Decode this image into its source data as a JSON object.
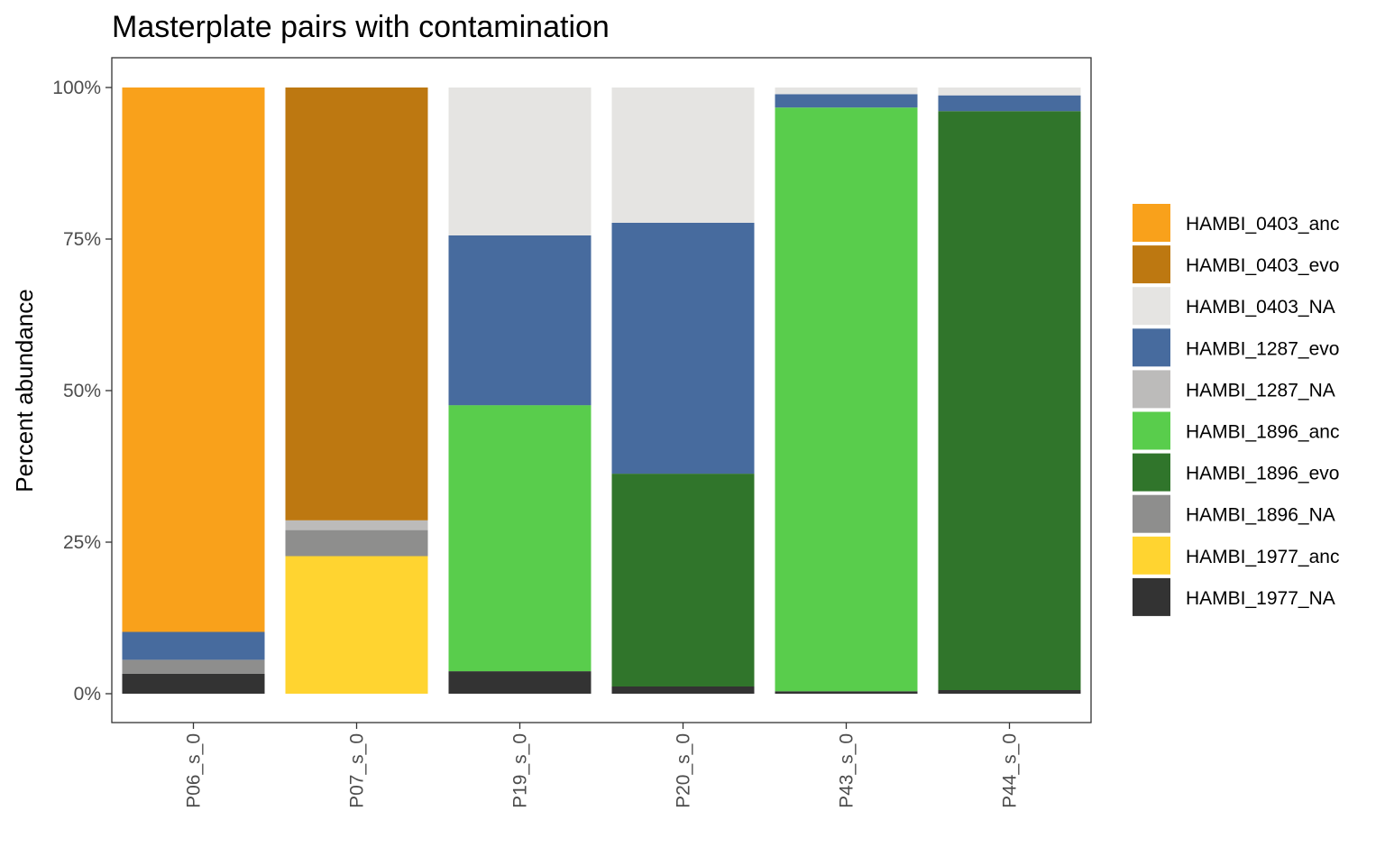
{
  "chart_data": {
    "type": "bar",
    "stacked": true,
    "title": "Masterplate pairs with contamination",
    "xlabel": "",
    "ylabel": "Percent abundance",
    "ylim": [
      0,
      100
    ],
    "yticks": [
      {
        "value": 0,
        "label": "0%"
      },
      {
        "value": 25,
        "label": "25%"
      },
      {
        "value": 50,
        "label": "50%"
      },
      {
        "value": 75,
        "label": "75%"
      },
      {
        "value": 100,
        "label": "100%"
      }
    ],
    "grid": false,
    "legend_position": "right",
    "categories": [
      "P06_s_0",
      "P07_s_0",
      "P19_s_0",
      "P20_s_0",
      "P43_s_0",
      "P44_s_0"
    ],
    "series": [
      {
        "name": "HAMBI_0403_anc",
        "color": "#f9a11b",
        "values": [
          89.8,
          0,
          0,
          0,
          0,
          0
        ]
      },
      {
        "name": "HAMBI_0403_evo",
        "color": "#bd7811",
        "values": [
          0,
          71.4,
          0,
          0,
          0,
          0
        ]
      },
      {
        "name": "HAMBI_0403_NA",
        "color": "#e5e4e2",
        "values": [
          0,
          0,
          24.4,
          22.3,
          1.1,
          1.3
        ]
      },
      {
        "name": "HAMBI_1287_evo",
        "color": "#476b9e",
        "values": [
          4.6,
          0,
          28.0,
          41.4,
          2.2,
          2.6
        ]
      },
      {
        "name": "HAMBI_1287_NA",
        "color": "#bcbbba",
        "values": [
          0,
          1.6,
          0,
          0,
          0,
          0
        ]
      },
      {
        "name": "HAMBI_1896_anc",
        "color": "#59cd4c",
        "values": [
          0,
          0,
          43.9,
          0,
          96.3,
          0
        ]
      },
      {
        "name": "HAMBI_1896_evo",
        "color": "#30752b",
        "values": [
          0,
          0,
          0,
          35.1,
          0,
          95.5
        ]
      },
      {
        "name": "HAMBI_1896_NA",
        "color": "#8e8e8d",
        "values": [
          2.3,
          4.3,
          0,
          0,
          0,
          0
        ]
      },
      {
        "name": "HAMBI_1977_anc",
        "color": "#ffd430",
        "values": [
          0,
          22.7,
          0,
          0,
          0,
          0
        ]
      },
      {
        "name": "HAMBI_1977_NA",
        "color": "#333333",
        "values": [
          3.3,
          0,
          3.7,
          1.2,
          0.4,
          0.6
        ]
      }
    ]
  }
}
